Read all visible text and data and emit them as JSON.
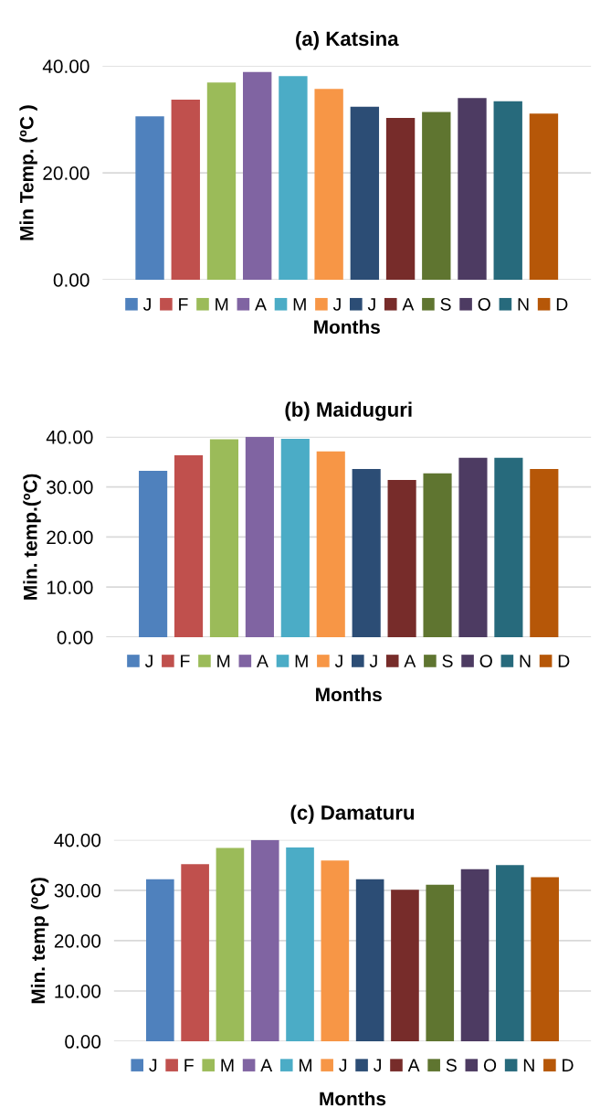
{
  "chart_data": [
    {
      "type": "bar",
      "title": "(a) Katsina",
      "xlabel": "Months",
      "ylabel": "Min Temp. (ºC )",
      "categories": [
        null
      ],
      "ylim": [
        0,
        40
      ],
      "yticks": [
        {
          "value": 0,
          "label": "0.00"
        },
        {
          "value": 20,
          "label": "20.00"
        },
        {
          "value": 40,
          "label": "40.00"
        }
      ],
      "grid": "y",
      "legend": "bottom",
      "series": [
        {
          "name": "J",
          "color": "#4f81bd",
          "values": [
            30.6
          ]
        },
        {
          "name": "F",
          "color": "#c0504d",
          "values": [
            33.7
          ]
        },
        {
          "name": "M",
          "color": "#9bbb59",
          "values": [
            36.9
          ]
        },
        {
          "name": "A",
          "color": "#8064a2",
          "values": [
            38.9
          ]
        },
        {
          "name": "M",
          "color": "#4bacc6",
          "values": [
            38.1
          ]
        },
        {
          "name": "J",
          "color": "#f79646",
          "values": [
            35.7
          ]
        },
        {
          "name": "J",
          "color": "#2c4d75",
          "values": [
            32.4
          ]
        },
        {
          "name": "A",
          "color": "#772c2a",
          "values": [
            30.3
          ]
        },
        {
          "name": "S",
          "color": "#5f7530",
          "values": [
            31.4
          ]
        },
        {
          "name": "O",
          "color": "#4d3b62",
          "values": [
            34.0
          ]
        },
        {
          "name": "N",
          "color": "#276a7c",
          "values": [
            33.4
          ]
        },
        {
          "name": "D",
          "color": "#b65708",
          "values": [
            31.1
          ]
        }
      ]
    },
    {
      "type": "bar",
      "title": "(b) Maiduguri",
      "xlabel": "Months",
      "ylabel": "Min. temp.(ºC)",
      "categories": [
        null
      ],
      "ylim": [
        0,
        40
      ],
      "yticks": [
        {
          "value": 0,
          "label": "0.00"
        },
        {
          "value": 10,
          "label": "10.00"
        },
        {
          "value": 20,
          "label": "20.00"
        },
        {
          "value": 30,
          "label": "30.00"
        },
        {
          "value": 40,
          "label": "40.00"
        }
      ],
      "grid": "y",
      "legend": "bottom",
      "series": [
        {
          "name": "J",
          "color": "#4f81bd",
          "values": [
            33.2
          ]
        },
        {
          "name": "F",
          "color": "#c0504d",
          "values": [
            36.3
          ]
        },
        {
          "name": "M",
          "color": "#9bbb59",
          "values": [
            39.5
          ]
        },
        {
          "name": "A",
          "color": "#8064a2",
          "values": [
            40.0
          ]
        },
        {
          "name": "M",
          "color": "#4bacc6",
          "values": [
            39.6
          ]
        },
        {
          "name": "J",
          "color": "#f79646",
          "values": [
            37.1
          ]
        },
        {
          "name": "J",
          "color": "#2c4d75",
          "values": [
            33.6
          ]
        },
        {
          "name": "A",
          "color": "#772c2a",
          "values": [
            31.4
          ]
        },
        {
          "name": "S",
          "color": "#5f7530",
          "values": [
            32.7
          ]
        },
        {
          "name": "O",
          "color": "#4d3b62",
          "values": [
            35.8
          ]
        },
        {
          "name": "N",
          "color": "#276a7c",
          "values": [
            35.8
          ]
        },
        {
          "name": "D",
          "color": "#b65708",
          "values": [
            33.6
          ]
        }
      ]
    },
    {
      "type": "bar",
      "title": "(c) Damaturu",
      "xlabel": "Months",
      "ylabel": "Min. temp (ºC)",
      "categories": [
        null
      ],
      "ylim": [
        0,
        40
      ],
      "yticks": [
        {
          "value": 0,
          "label": "0.00"
        },
        {
          "value": 10,
          "label": "10.00"
        },
        {
          "value": 20,
          "label": "20.00"
        },
        {
          "value": 30,
          "label": "30.00"
        },
        {
          "value": 40,
          "label": "40.00"
        }
      ],
      "grid": "y",
      "legend": "bottom",
      "series": [
        {
          "name": "J",
          "color": "#4f81bd",
          "values": [
            32.2
          ]
        },
        {
          "name": "F",
          "color": "#c0504d",
          "values": [
            35.2
          ]
        },
        {
          "name": "M",
          "color": "#9bbb59",
          "values": [
            38.4
          ]
        },
        {
          "name": "A",
          "color": "#8064a2",
          "values": [
            40.0
          ]
        },
        {
          "name": "M",
          "color": "#4bacc6",
          "values": [
            38.5
          ]
        },
        {
          "name": "J",
          "color": "#f79646",
          "values": [
            35.9
          ]
        },
        {
          "name": "J",
          "color": "#2c4d75",
          "values": [
            32.2
          ]
        },
        {
          "name": "A",
          "color": "#772c2a",
          "values": [
            30.1
          ]
        },
        {
          "name": "S",
          "color": "#5f7530",
          "values": [
            31.1
          ]
        },
        {
          "name": "O",
          "color": "#4d3b62",
          "values": [
            34.2
          ]
        },
        {
          "name": "N",
          "color": "#276a7c",
          "values": [
            35.0
          ]
        },
        {
          "name": "D",
          "color": "#b65708",
          "values": [
            32.6
          ]
        }
      ]
    }
  ]
}
